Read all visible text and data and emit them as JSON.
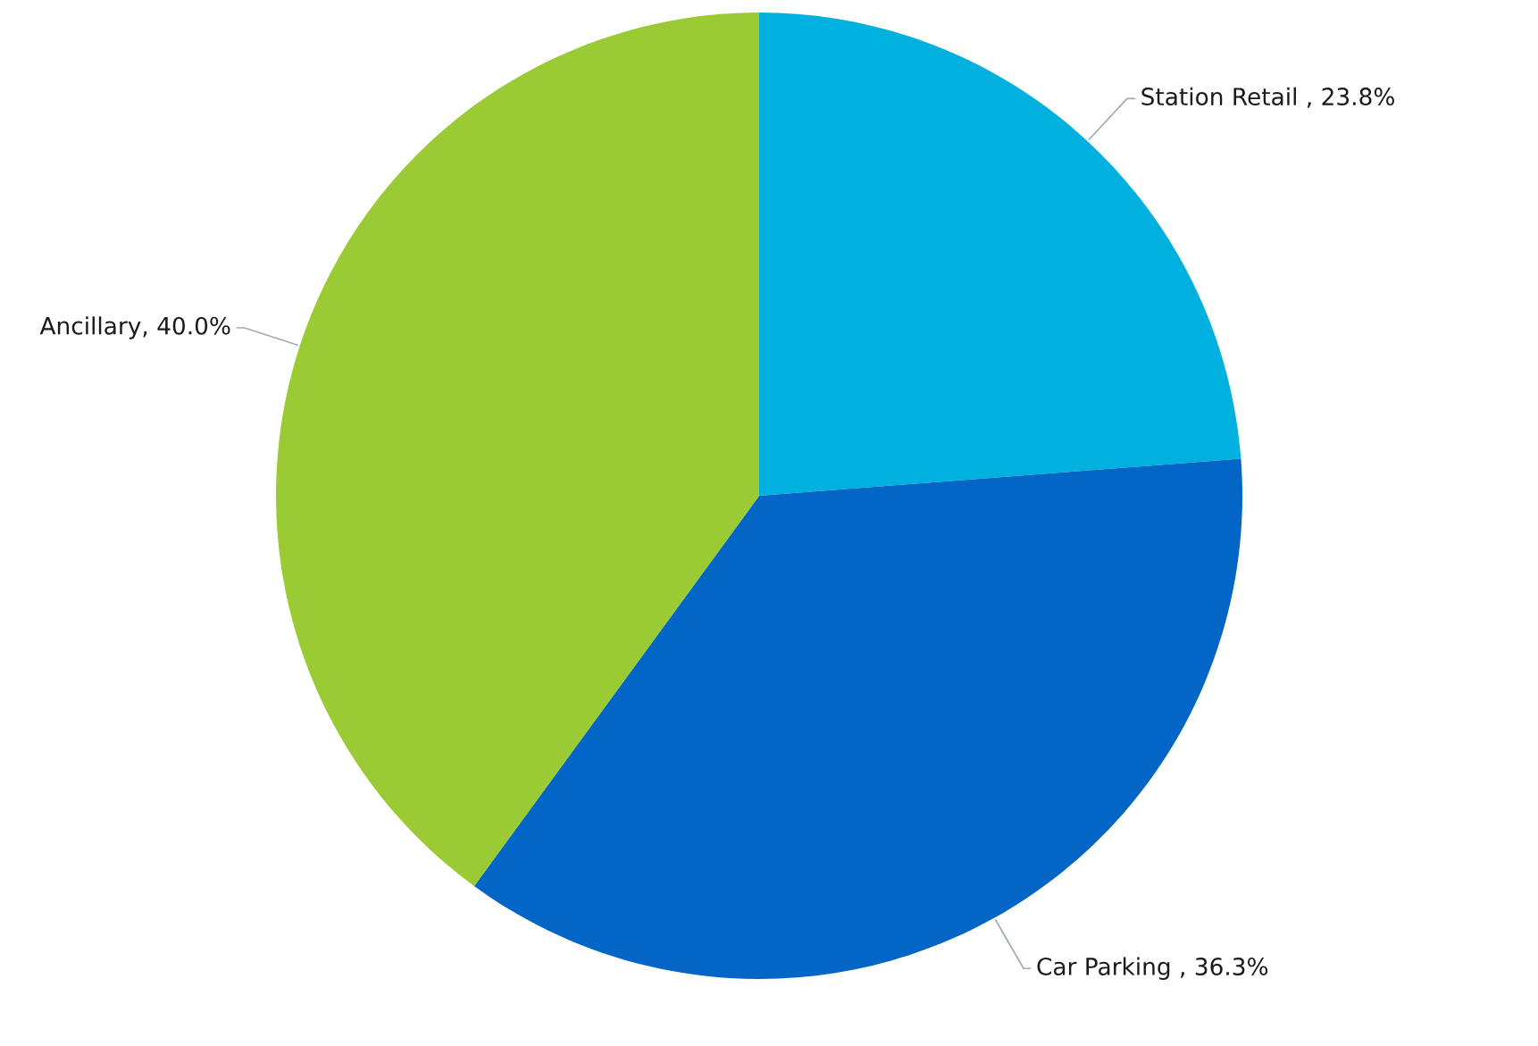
{
  "chart_data": {
    "type": "pie",
    "categories": [
      "Station Retail ",
      "Car Parking ",
      "Ancillary"
    ],
    "values": [
      23.8,
      36.3,
      40.0
    ],
    "value_labels": [
      "23.8%",
      "36.3%",
      "40.0%"
    ],
    "colors": [
      "#00b0de",
      "#0366c6",
      "#9acb34"
    ]
  }
}
